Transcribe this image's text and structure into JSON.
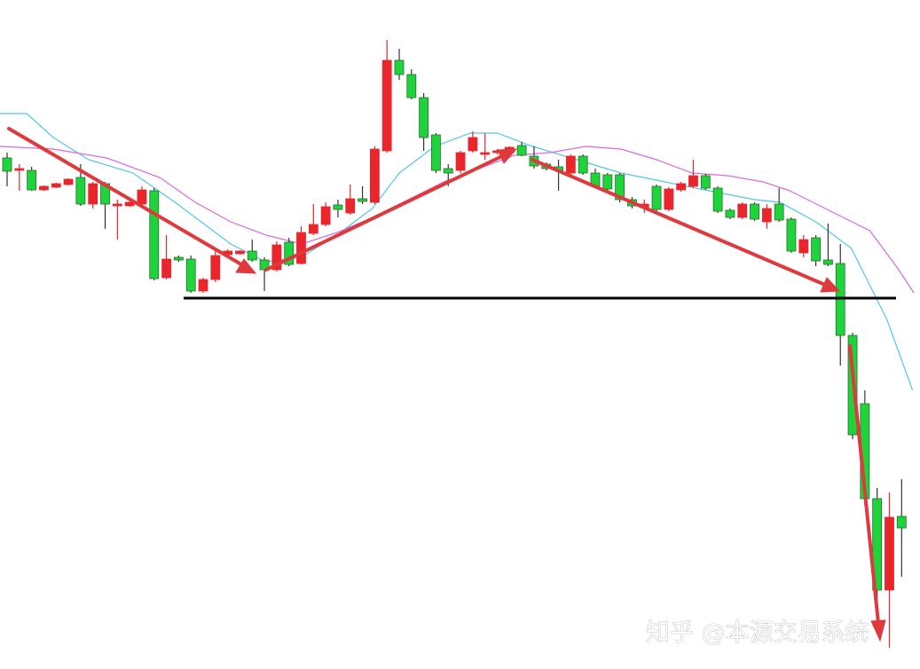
{
  "chart_data": {
    "type": "candlestick",
    "annotation": "知乎 @本源交易系统",
    "ylim": [
      0,
      754
    ],
    "xlim": [
      -0.58,
      74.5
    ],
    "up_color": "#e8262c",
    "down_color": "#1fd43a",
    "open": [
      576,
      562,
      562,
      540,
      543,
      546,
      554,
      524,
      547,
      522,
      522,
      524,
      539,
      441,
      464,
      462,
      426,
      439,
      467,
      468,
      471,
      461,
      450,
      481,
      457,
      491,
      501,
      523,
      514,
      530,
      526,
      584,
      686,
      670,
      644,
      602,
      564,
      562,
      584,
      580,
      582,
      582,
      590,
      578,
      569,
      566,
      559,
      578,
      559,
      557,
      557,
      529,
      520,
      544,
      518,
      540,
      544,
      556,
      542,
      517,
      509,
      524,
      504,
      524,
      507,
      469,
      486,
      461,
      457,
      376,
      299,
      192,
      89,
      172
    ],
    "high": [
      582,
      569,
      566,
      545,
      548,
      553,
      569,
      549,
      549,
      529,
      527,
      544,
      542,
      489,
      466,
      466,
      441,
      472,
      473,
      472,
      484,
      464,
      482,
      486,
      499,
      524,
      526,
      529,
      546,
      544,
      589,
      709,
      699,
      676,
      649,
      604,
      569,
      584,
      606,
      604,
      586,
      589,
      594,
      589,
      571,
      574,
      580,
      580,
      564,
      559,
      559,
      532,
      529,
      546,
      543,
      549,
      574,
      558,
      544,
      519,
      526,
      526,
      524,
      542,
      509,
      489,
      489,
      502,
      479,
      379,
      314,
      204,
      199,
      214
    ],
    "low": [
      544,
      539,
      539,
      539,
      542,
      545,
      522,
      519,
      496,
      484,
      521,
      522,
      438,
      439,
      459,
      424,
      424,
      436,
      465,
      467,
      459,
      426,
      448,
      454,
      456,
      489,
      499,
      509,
      512,
      524,
      524,
      582,
      664,
      642,
      584,
      559,
      544,
      559,
      582,
      574,
      580,
      579,
      578,
      564,
      562,
      539,
      557,
      557,
      542,
      539,
      526,
      519,
      514,
      516,
      516,
      538,
      542,
      540,
      514,
      507,
      507,
      505,
      496,
      504,
      469,
      464,
      454,
      454,
      342,
      259,
      184,
      64,
      24,
      104
    ],
    "close": [
      561,
      564,
      540,
      544,
      547,
      552,
      524,
      547,
      524,
      524,
      526,
      540,
      440,
      462,
      461,
      426,
      439,
      466,
      471,
      471,
      461,
      450,
      478,
      456,
      492,
      501,
      521,
      518,
      530,
      527,
      586,
      686,
      670,
      644,
      599,
      562,
      559,
      582,
      599,
      582,
      584,
      588,
      579,
      567,
      564,
      562,
      578,
      559,
      544,
      541,
      529,
      522,
      524,
      518,
      541,
      547,
      556,
      542,
      516,
      509,
      524,
      507,
      519,
      506,
      471,
      484,
      460,
      456,
      376,
      264,
      192,
      89,
      171,
      159
    ],
    "lines": [
      {
        "color": "#4fc6e6",
        "x": [
          -0.58,
          1.6,
          3.77,
          6.66,
          10.28,
          13.9,
          18.25,
          21.1,
          24.0,
          26.9,
          29.8,
          32.0,
          34.9,
          37.8,
          40.0,
          42.9,
          46.5,
          50.1,
          53.7,
          57.3,
          61.0,
          63.1,
          66.0,
          68.9,
          71.8,
          73.9
        ],
        "values": [
          626,
          626,
          599,
          574,
          559,
          524,
          479,
          459,
          464,
          489,
          519,
          559,
          589,
          604,
          604,
          589,
          574,
          559,
          549,
          539,
          529,
          526,
          504,
          474,
          394,
          314
        ]
      },
      {
        "color": "#d96ae0",
        "x": [
          -0.58,
          3.77,
          8.11,
          12.45,
          15.35,
          18.25,
          21.14,
          24.04,
          26.94,
          29.83,
          32.73,
          35.63,
          38.52,
          41.42,
          44.32,
          47.21,
          50.11,
          53.0,
          55.9,
          58.8,
          61.7,
          63.87,
          67.5,
          70.4,
          72.56,
          74.0
        ],
        "values": [
          589,
          586,
          576,
          554,
          526,
          504,
          489,
          479,
          492,
          509,
          529,
          549,
          564,
          579,
          582,
          589,
          586,
          574,
          559,
          556,
          549,
          539,
          514,
          494,
          454,
          424
        ]
      }
    ]
  }
}
